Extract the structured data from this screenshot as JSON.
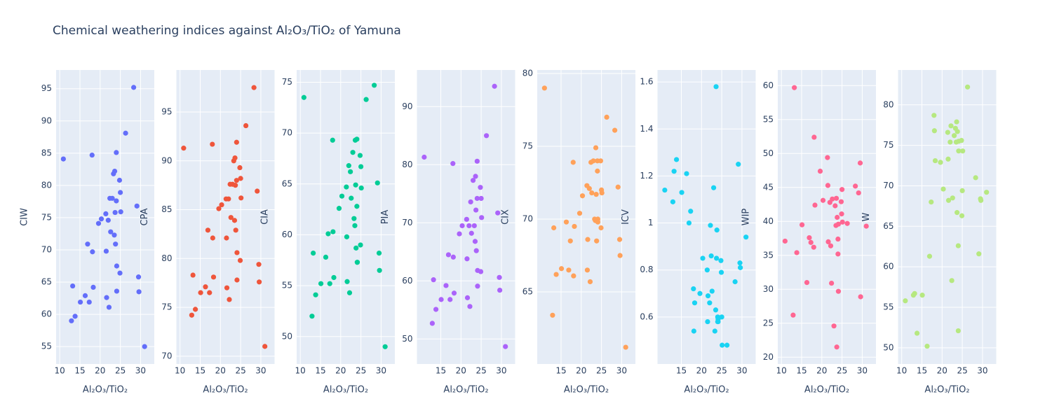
{
  "chart_data": [
    {
      "type": "scatter",
      "title": "Chemical weathering indices against Al₂O₃/TiO₂ of Yamuna",
      "x_label": "Al₂O₃/TiO₂",
      "y_label": "CIW",
      "color": "#636efa",
      "x": [
        10.9,
        12.9,
        13.2,
        13.8,
        15.1,
        16.3,
        16.9,
        17.3,
        18.0,
        18.1,
        18.3,
        19.6,
        20.3,
        21.4,
        21.5,
        21.6,
        22.0,
        22.2,
        22.4,
        22.6,
        23.0,
        23.3,
        23.5,
        23.6,
        23.7,
        23.8,
        24.0,
        24.0,
        24.1,
        24.1,
        24.8,
        24.9,
        25.0,
        25.1,
        26.3,
        28.3,
        29.1,
        29.5,
        29.6,
        31.0
      ],
      "values": [
        84.1,
        59.0,
        64.4,
        59.7,
        61.9,
        62.9,
        70.9,
        61.9,
        84.7,
        69.7,
        64.2,
        74.1,
        74.8,
        75.6,
        69.8,
        62.6,
        74.6,
        61.1,
        78.0,
        72.8,
        78.0,
        81.8,
        72.3,
        82.2,
        75.8,
        70.9,
        85.1,
        77.6,
        67.5,
        63.6,
        80.8,
        66.4,
        78.9,
        75.9,
        88.1,
        95.2,
        76.8,
        65.8,
        63.5,
        55.0
      ],
      "xlim": [
        9.1,
        33.4
      ],
      "xticks": [
        10,
        15,
        20,
        25,
        30
      ],
      "ylim": [
        52.3,
        97.9
      ],
      "yticks": [
        55,
        60,
        65,
        70,
        75,
        80,
        85,
        90,
        95
      ],
      "grid": true
    },
    {
      "type": "scatter",
      "x_label": "Al₂O₃/TiO₂",
      "y_label": "CPA",
      "color": "#EF553B",
      "x": [
        10.9,
        12.9,
        13.2,
        13.8,
        15.1,
        16.3,
        16.9,
        17.3,
        18.0,
        18.1,
        18.3,
        19.6,
        20.3,
        21.4,
        21.5,
        21.6,
        22.0,
        22.2,
        22.4,
        22.6,
        23.0,
        23.3,
        23.5,
        23.6,
        23.7,
        23.8,
        24.0,
        24.0,
        24.1,
        24.1,
        24.8,
        24.9,
        25.0,
        25.1,
        26.3,
        28.3,
        29.1,
        29.5,
        29.6,
        31.0
      ],
      "values": [
        91.3,
        74.2,
        78.3,
        74.8,
        76.5,
        77.1,
        82.9,
        76.5,
        91.7,
        82.1,
        78.1,
        85.1,
        85.5,
        86.1,
        82.1,
        77.0,
        86.1,
        75.8,
        87.6,
        84.2,
        87.6,
        90.0,
        83.9,
        90.3,
        87.5,
        82.9,
        91.9,
        88.0,
        80.6,
        77.8,
        89.3,
        79.8,
        88.2,
        86.2,
        93.6,
        97.5,
        86.9,
        79.4,
        77.6,
        71.0
      ],
      "xlim": [
        9.1,
        33.4
      ],
      "xticks": [
        10,
        15,
        20,
        25,
        30
      ],
      "ylim": [
        69.2,
        99.3
      ],
      "yticks": [
        70,
        75,
        80,
        85,
        90,
        95
      ],
      "grid": true
    },
    {
      "type": "scatter",
      "x_label": "Al₂O₃/TiO₂",
      "y_label": "CIA",
      "color": "#00cc96",
      "x": [
        10.9,
        12.9,
        13.2,
        13.8,
        15.1,
        16.3,
        16.9,
        17.3,
        18.0,
        18.1,
        18.3,
        19.6,
        20.3,
        21.4,
        21.5,
        21.6,
        22.0,
        22.2,
        22.4,
        22.6,
        23.0,
        23.3,
        23.5,
        23.6,
        23.7,
        23.8,
        24.0,
        24.0,
        24.1,
        24.1,
        24.8,
        24.9,
        25.0,
        25.1,
        26.3,
        28.3,
        29.1,
        29.5,
        29.6,
        31.0
      ],
      "values": [
        73.5,
        52.0,
        58.2,
        54.1,
        55.2,
        57.8,
        60.1,
        55.2,
        69.3,
        60.3,
        55.8,
        62.6,
        63.8,
        64.7,
        59.8,
        55.4,
        66.8,
        54.3,
        66.2,
        63.6,
        68.1,
        61.6,
        60.9,
        69.3,
        64.9,
        58.7,
        69.4,
        62.8,
        57.3,
        57.3,
        67.8,
        59.0,
        66.7,
        64.6,
        73.3,
        74.7,
        65.1,
        58.2,
        56.5,
        49.0
      ],
      "xlim": [
        9.1,
        33.4
      ],
      "xticks": [
        10,
        15,
        20,
        25,
        30
      ],
      "ylim": [
        47.3,
        76.2
      ],
      "yticks": [
        50,
        55,
        60,
        65,
        70,
        75
      ],
      "grid": true
    },
    {
      "type": "scatter",
      "x_label": "Al₂O₃/TiO₂",
      "y_label": "PIA",
      "color": "#ab63fa",
      "x": [
        10.9,
        12.9,
        13.2,
        13.8,
        15.1,
        16.3,
        16.9,
        17.3,
        18.0,
        18.1,
        18.3,
        19.6,
        20.3,
        21.4,
        21.5,
        21.6,
        22.0,
        22.2,
        22.4,
        22.6,
        23.0,
        23.3,
        23.5,
        23.6,
        23.7,
        23.8,
        24.0,
        24.0,
        24.1,
        24.1,
        24.8,
        24.9,
        25.0,
        25.1,
        26.3,
        28.3,
        29.1,
        29.5,
        29.6,
        31.0
      ],
      "values": [
        81.3,
        52.7,
        60.2,
        55.1,
        56.8,
        59.2,
        64.5,
        56.8,
        80.2,
        64.1,
        57.9,
        68.1,
        69.5,
        70.6,
        63.8,
        57.1,
        69.5,
        55.6,
        73.6,
        68.2,
        77.3,
        69.5,
        66.8,
        78.0,
        72.2,
        65.2,
        80.6,
        74.2,
        61.8,
        59.1,
        76.1,
        61.6,
        74.2,
        70.9,
        85.0,
        93.5,
        71.7,
        60.6,
        58.4,
        48.7
      ],
      "xlim": [
        9.1,
        33.4
      ],
      "xticks": [
        15,
        20,
        25,
        30
      ],
      "ylim": [
        45.7,
        96.3
      ],
      "yticks": [
        50,
        60,
        70,
        80,
        90
      ],
      "grid": true
    },
    {
      "type": "scatter",
      "x_label": "Al₂O₃/TiO₂",
      "y_label": "CIX",
      "color": "#FFA15A",
      "x": [
        10.9,
        12.9,
        13.2,
        13.8,
        15.1,
        16.3,
        16.9,
        17.3,
        18.0,
        18.1,
        18.3,
        19.6,
        20.3,
        21.4,
        21.5,
        21.6,
        22.0,
        22.2,
        22.4,
        22.6,
        23.0,
        23.3,
        23.5,
        23.6,
        23.7,
        23.8,
        24.0,
        24.0,
        24.1,
        24.1,
        24.8,
        24.9,
        25.0,
        25.1,
        26.3,
        28.3,
        29.1,
        29.5,
        29.6,
        31.0
      ],
      "values": [
        79.0,
        63.4,
        69.4,
        66.2,
        66.6,
        69.8,
        66.5,
        68.5,
        73.9,
        66.1,
        69.5,
        70.4,
        71.6,
        72.3,
        66.5,
        68.6,
        72.1,
        65.7,
        73.9,
        71.8,
        74.0,
        70.0,
        69.9,
        74.9,
        71.7,
        68.5,
        74.0,
        73.3,
        70.0,
        69.8,
        74.0,
        69.4,
        72.0,
        71.8,
        77.0,
        76.1,
        72.2,
        68.6,
        67.5,
        61.2
      ],
      "xlim": [
        9.1,
        33.4
      ],
      "xticks": [
        15,
        20,
        25,
        30
      ],
      "ylim": [
        60.05,
        80.24
      ],
      "yticks": [
        65,
        70,
        75,
        80
      ],
      "grid": true
    },
    {
      "type": "scatter",
      "x_label": "Al₂O₃/TiO₂",
      "y_label": "ICV",
      "color": "#19d3f3",
      "x": [
        10.9,
        12.9,
        13.2,
        13.8,
        15.1,
        16.3,
        16.9,
        17.3,
        18.0,
        18.1,
        18.3,
        19.6,
        20.3,
        21.4,
        21.5,
        21.6,
        22.0,
        22.2,
        22.4,
        22.6,
        23.0,
        23.3,
        23.5,
        23.6,
        23.7,
        23.8,
        24.0,
        24.0,
        24.1,
        24.1,
        24.8,
        24.9,
        25.0,
        25.1,
        26.3,
        28.3,
        29.1,
        29.5,
        29.6,
        31.0
      ],
      "values": [
        1.14,
        1.09,
        1.22,
        1.27,
        1.13,
        1.21,
        1.0,
        1.05,
        0.72,
        0.54,
        0.66,
        0.7,
        0.85,
        0.8,
        0.58,
        0.69,
        0.66,
        0.99,
        0.86,
        0.71,
        1.15,
        0.54,
        0.63,
        1.58,
        0.85,
        0.97,
        0.6,
        0.58,
        0.58,
        0.59,
        0.84,
        0.79,
        0.6,
        0.48,
        0.48,
        0.75,
        1.25,
        0.83,
        0.81,
        0.94
      ],
      "xlim": [
        9.1,
        33.4
      ],
      "xticks": [
        15,
        20,
        25,
        30
      ],
      "ylim": [
        0.4,
        1.651
      ],
      "yticks": [
        0.6,
        0.8,
        1,
        1.2,
        1.4,
        1.6
      ],
      "grid": true
    },
    {
      "type": "scatter",
      "x_label": "Al₂O₃/TiO₂",
      "y_label": "WIP",
      "color": "#FF6692",
      "x": [
        10.9,
        12.9,
        13.2,
        13.8,
        15.1,
        16.3,
        16.9,
        17.3,
        18.0,
        18.1,
        18.3,
        19.6,
        20.3,
        21.4,
        21.5,
        21.6,
        22.0,
        22.2,
        22.4,
        22.6,
        23.0,
        23.3,
        23.5,
        23.6,
        23.7,
        23.8,
        24.0,
        24.0,
        24.1,
        24.1,
        24.8,
        24.9,
        25.0,
        25.1,
        26.3,
        28.3,
        29.1,
        29.5,
        29.6,
        31.0
      ],
      "values": [
        37.1,
        26.2,
        59.7,
        35.4,
        39.5,
        31.0,
        37.6,
        36.9,
        36.2,
        52.4,
        42.4,
        47.4,
        43.1,
        49.4,
        45.3,
        37.0,
        42.8,
        36.4,
        30.9,
        43.3,
        24.6,
        42.3,
        39.4,
        43.4,
        21.5,
        40.6,
        35.2,
        37.4,
        29.7,
        39.6,
        42.9,
        41.1,
        44.7,
        39.9,
        39.7,
        45.2,
        44.2,
        48.6,
        28.9,
        39.3
      ],
      "xlim": [
        9.1,
        33.4
      ],
      "xticks": [
        10,
        15,
        20,
        25,
        30
      ],
      "ylim": [
        19.0,
        62.3
      ],
      "yticks": [
        20,
        25,
        30,
        35,
        40,
        45,
        50,
        55,
        60
      ],
      "grid": true
    },
    {
      "type": "scatter",
      "x_label": "Al₂O₃/TiO₂",
      "y_label": "W",
      "color": "#B6E880",
      "x": [
        10.9,
        12.9,
        13.2,
        13.8,
        15.1,
        16.3,
        16.9,
        17.3,
        18.0,
        18.1,
        18.3,
        19.6,
        20.3,
        21.4,
        21.5,
        21.6,
        22.0,
        22.2,
        22.4,
        22.6,
        23.0,
        23.3,
        23.5,
        23.6,
        23.7,
        23.8,
        24.0,
        24.0,
        24.1,
        24.1,
        24.8,
        24.9,
        25.0,
        25.1,
        26.3,
        28.3,
        29.1,
        29.5,
        29.6,
        31.0
      ],
      "values": [
        55.8,
        56.5,
        56.7,
        51.8,
        56.5,
        50.2,
        61.3,
        68.0,
        78.7,
        76.8,
        73.1,
        72.9,
        69.6,
        76.6,
        73.3,
        68.2,
        75.4,
        77.4,
        58.3,
        68.5,
        76.2,
        77.1,
        75.4,
        77.9,
        66.7,
        76.7,
        62.6,
        52.1,
        75.5,
        74.3,
        75.6,
        66.3,
        69.4,
        74.3,
        82.2,
        71.0,
        61.6,
        68.4,
        68.2,
        69.2
      ],
      "xlim": [
        9.1,
        33.4
      ],
      "xticks": [
        10,
        15,
        20,
        25,
        30
      ],
      "ylim": [
        48.0,
        84.3
      ],
      "yticks": [
        50,
        55,
        60,
        65,
        70,
        75,
        80
      ],
      "grid": true
    }
  ]
}
